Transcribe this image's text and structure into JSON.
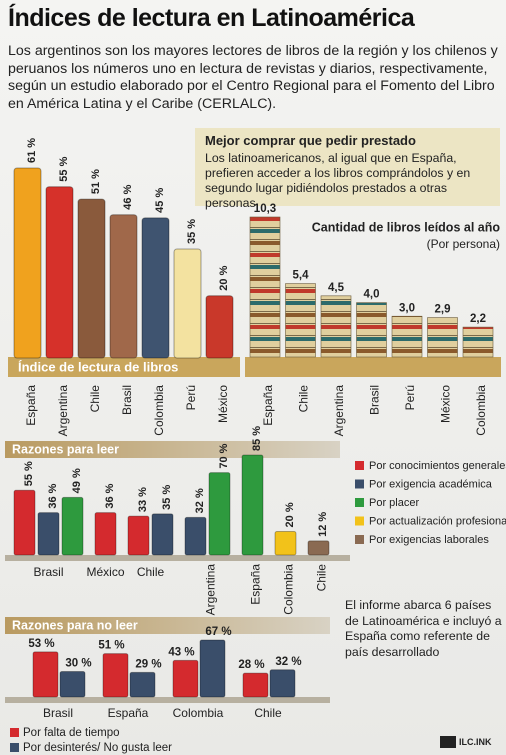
{
  "header": {
    "title": "Índices de lectura en Latinoamérica",
    "intro": "Los argentinos son los mayores lectores de libros de la región y los chilenos y peruanos los números uno en lectura de revistas y diarios, respectivamente, según un estudio elaborado por el Centro Regional para el Fomento del Libro en América Latina y el Caribe (CERLALC)."
  },
  "callout": {
    "title": "Mejor comprar que pedir prestado",
    "text": "Los latinoamericanos, al igual que en España, prefieren acceder a los libros comprándolos y en segundo lugar pidiéndolos prestados a otras personas"
  },
  "note": {
    "text": "El informe abarca 6 países de Latinoamérica e incluyó a España como referente de país desarrollado"
  },
  "credit": "ILC.INK",
  "chart_data": [
    {
      "type": "bar",
      "title": "Índice de lectura de libros",
      "categories": [
        "España",
        "Argentina",
        "Chile",
        "Brasil",
        "Colombia",
        "Perú",
        "México"
      ],
      "values": [
        61,
        55,
        51,
        46,
        45,
        35,
        20
      ],
      "value_labels": [
        "61 %",
        "55 %",
        "51 %",
        "46 %",
        "45 %",
        "35 %",
        "20 %"
      ],
      "colors": [
        "#f0a21e",
        "#d6312a",
        "#8a5a3c",
        "#a0684a",
        "#3f5470",
        "#f3e2a0",
        "#c9382a"
      ]
    },
    {
      "type": "books",
      "title": "Cantidad de libros leídos al año",
      "subtitle": "(Por persona)",
      "categories": [
        "España",
        "Chile",
        "Argentina",
        "Brasil",
        "Perú",
        "México",
        "Colombia"
      ],
      "values": [
        10.3,
        5.4,
        4.5,
        4.0,
        3.0,
        2.9,
        2.2
      ],
      "value_labels": [
        "10,3",
        "5,4",
        "4,5",
        "4,0",
        "3,0",
        "2,9",
        "2,2"
      ]
    },
    {
      "type": "grouped",
      "title": "Razones para leer",
      "categories": [
        "Brasil",
        "México",
        "Chile",
        "Argentina",
        "España",
        "Colombia",
        "Chile"
      ],
      "series": [
        {
          "name": "Por conocimientos generales",
          "color": "#d42a2e",
          "values": [
            55,
            36,
            33,
            null,
            null,
            null,
            null
          ],
          "value_labels": [
            "55 %",
            "36 %",
            "33 %",
            null,
            null,
            null,
            null
          ]
        },
        {
          "name": "Por exigencia académica",
          "color": "#3a4e6a",
          "values": [
            36,
            null,
            35,
            32,
            null,
            null,
            null
          ],
          "value_labels": [
            "36 %",
            null,
            "35 %",
            "32 %",
            null,
            null,
            null
          ]
        },
        {
          "name": "Por placer",
          "color": "#2e9a3e",
          "values": [
            49,
            null,
            null,
            70,
            85,
            null,
            null
          ],
          "value_labels": [
            "49 %",
            null,
            null,
            "70 %",
            "85 %",
            null,
            null
          ]
        },
        {
          "name": "Por actualización profesional",
          "color": "#f2c21a",
          "values": [
            null,
            null,
            null,
            null,
            null,
            20,
            null
          ],
          "value_labels": [
            null,
            null,
            null,
            null,
            null,
            "20 %",
            null
          ]
        },
        {
          "name": "Por exigencias laborales",
          "color": "#8a6a52",
          "values": [
            null,
            null,
            null,
            null,
            null,
            null,
            12
          ],
          "value_labels": [
            null,
            null,
            null,
            null,
            null,
            null,
            "12 %"
          ]
        }
      ]
    },
    {
      "type": "grouped2",
      "title": "Razones para no leer",
      "categories": [
        "Brasil",
        "España",
        "Colombia",
        "Chile"
      ],
      "series": [
        {
          "name": "Por falta de tiempo",
          "color": "#d42a2e",
          "values": [
            53,
            51,
            43,
            28
          ],
          "value_labels": [
            "53 %",
            "51 %",
            "43 %",
            "28 %"
          ]
        },
        {
          "name": "Por desinterés/ No gusta leer",
          "color": "#3a4e6a",
          "values": [
            30,
            29,
            67,
            32
          ],
          "value_labels": [
            "30 %",
            "29 %",
            "67 %",
            "32 %"
          ]
        }
      ]
    }
  ]
}
